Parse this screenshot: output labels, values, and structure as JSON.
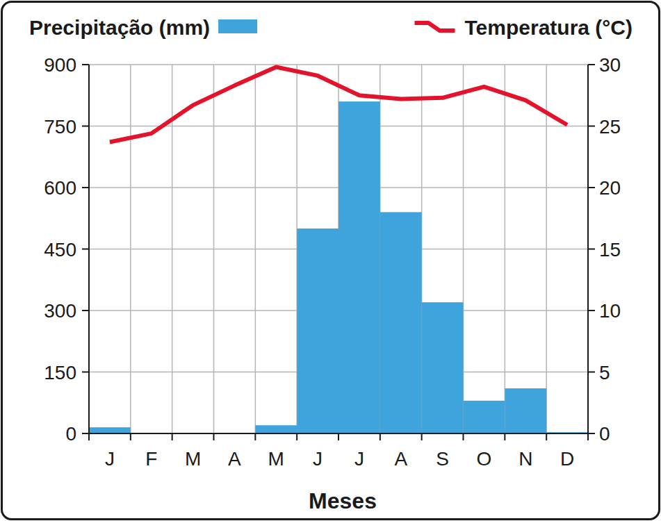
{
  "chart_data": {
    "type": "bar",
    "x_label": "Meses",
    "categories": [
      "J",
      "F",
      "M",
      "A",
      "M",
      "J",
      "J",
      "A",
      "S",
      "O",
      "N",
      "D"
    ],
    "series": [
      {
        "name": "Precipitação (mm)",
        "type": "bar",
        "color": "#3fa4dc",
        "values": [
          15,
          0,
          0,
          0,
          20,
          500,
          810,
          540,
          320,
          80,
          110,
          3
        ]
      },
      {
        "name": "Temperatura (°C)",
        "type": "line",
        "axis": "y2",
        "color": "#e3132c",
        "values": [
          23.7,
          24.4,
          26.7,
          28.3,
          29.8,
          29.1,
          27.5,
          27.2,
          27.3,
          28.2,
          27.1,
          25.1
        ]
      }
    ],
    "ylim": [
      0,
      900
    ],
    "yticks": [
      0,
      150,
      300,
      450,
      600,
      750,
      900
    ],
    "y2lim": [
      0,
      30
    ],
    "y2ticks": [
      0,
      5,
      10,
      15,
      20,
      25,
      30
    ],
    "grid": true,
    "legend": "top"
  }
}
